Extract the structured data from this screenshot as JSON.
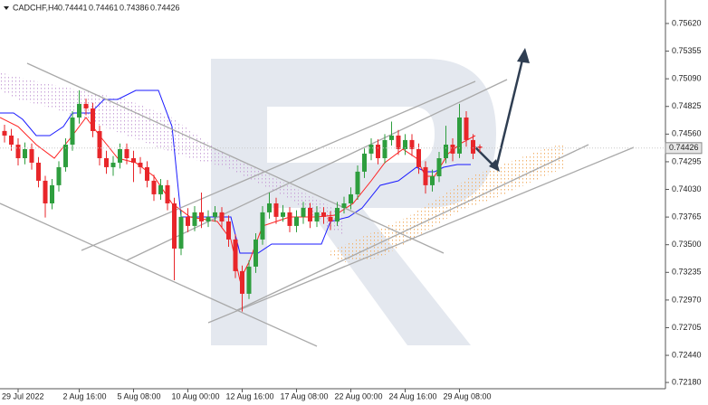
{
  "chart_data": {
    "type": "candlestick",
    "title": "CADCHF,H4",
    "categories": [
      null,
      null,
      "29 Jul 2022",
      null,
      null,
      null,
      null,
      null,
      null,
      null,
      null,
      "2 Aug 16:00",
      null,
      null,
      null,
      null,
      null,
      null,
      null,
      "5 Aug 08:00",
      null,
      null,
      null,
      null,
      null,
      null,
      null,
      "10 Aug 00:00",
      null,
      null,
      null,
      null,
      null,
      null,
      null,
      "12 Aug 16:00",
      null,
      null,
      null,
      null,
      null,
      null,
      null,
      "17 Aug 08:00",
      null,
      null,
      null,
      null,
      null,
      null,
      null,
      "22 Aug 00:00",
      null,
      null,
      null,
      null,
      null,
      null,
      null,
      "24 Aug 16:00",
      null,
      null,
      null,
      null,
      null,
      null,
      null,
      "29 Aug 08:00",
      null,
      null,
      null
    ],
    "open": [
      0.7459,
      0.74546,
      0.74459,
      0.74329,
      0.74416,
      0.74286,
      0.74113,
      0.73896,
      0.7407,
      0.74243,
      0.74459,
      0.74719,
      0.74849,
      0.74806,
      0.74589,
      0.74329,
      0.74243,
      0.74286,
      0.74416,
      0.74329,
      0.74286,
      0.74243,
      0.74113,
      0.73983,
      0.7407,
      0.73896,
      0.73463,
      0.73767,
      0.7368,
      0.7381,
      0.73723,
      0.73767,
      0.7381,
      0.73723,
      0.7355,
      0.73247,
      0.7303,
      0.7329,
      0.7355,
      0.7381,
      0.73896,
      0.73767,
      0.7381,
      0.7368,
      0.73767,
      0.73853,
      0.73723,
      0.7381,
      0.73767,
      0.73723,
      0.73853,
      0.73896,
      0.73983,
      0.742,
      0.74373,
      0.74459,
      0.74329,
      0.74503,
      0.74546,
      0.74416,
      0.74503,
      0.74416,
      0.74243,
      0.7407,
      0.74156,
      0.74329,
      0.74459,
      0.74373,
      0.74719,
      0.74503,
      0.74441
    ],
    "high": [
      0.7465,
      0.7461,
      0.7452,
      0.7448,
      0.7447,
      0.7434,
      0.7416,
      0.7413,
      0.743,
      0.7452,
      0.7478,
      0.7498,
      0.749,
      0.7486,
      0.7464,
      0.744,
      0.7435,
      0.7447,
      0.7447,
      0.744,
      0.7434,
      0.743,
      0.7417,
      0.7413,
      0.7412,
      0.7395,
      0.7383,
      0.7385,
      0.7387,
      0.74,
      0.7383,
      0.7387,
      0.7386,
      0.7378,
      0.736,
      0.733,
      0.7335,
      0.7361,
      0.7387,
      0.74,
      0.7395,
      0.7388,
      0.7386,
      0.7383,
      0.7391,
      0.739,
      0.7387,
      0.7386,
      0.7382,
      0.7391,
      0.7396,
      0.7405,
      0.7426,
      0.7443,
      0.7452,
      0.7451,
      0.7456,
      0.7468,
      0.746,
      0.7456,
      0.7456,
      0.7447,
      0.743,
      0.7422,
      0.7439,
      0.7464,
      0.7452,
      0.7485,
      0.7478,
      0.7456,
      0.74461
    ],
    "low": [
      0.7448,
      0.744,
      0.7426,
      0.7427,
      0.7422,
      0.7405,
      0.7376,
      0.7384,
      0.7401,
      0.742,
      0.744,
      0.7466,
      0.7474,
      0.7453,
      0.7426,
      0.7418,
      0.7416,
      0.7423,
      0.7427,
      0.741,
      0.7418,
      0.7405,
      0.7392,
      0.7393,
      0.7383,
      0.7316,
      0.734,
      0.7362,
      0.7363,
      0.7366,
      0.7367,
      0.7372,
      0.7366,
      0.7348,
      0.7318,
      0.7286,
      0.7298,
      0.7323,
      0.735,
      0.7375,
      0.737,
      0.7372,
      0.7362,
      0.7362,
      0.737,
      0.7366,
      0.7367,
      0.737,
      0.7364,
      0.7368,
      0.738,
      0.7384,
      0.7393,
      0.7414,
      0.7431,
      0.7427,
      0.7428,
      0.7445,
      0.7436,
      0.7436,
      0.7435,
      0.7418,
      0.7399,
      0.7401,
      0.741,
      0.7428,
      0.743,
      0.7433,
      0.7444,
      0.7432,
      0.74386
    ],
    "close": [
      0.74546,
      0.74459,
      0.74329,
      0.74416,
      0.74286,
      0.74113,
      0.73896,
      0.7407,
      0.74243,
      0.74459,
      0.74719,
      0.74849,
      0.74806,
      0.74589,
      0.74329,
      0.74243,
      0.74286,
      0.74416,
      0.74329,
      0.74286,
      0.74243,
      0.74113,
      0.73983,
      0.7407,
      0.73896,
      0.73463,
      0.73767,
      0.7368,
      0.7381,
      0.73723,
      0.73767,
      0.7381,
      0.73723,
      0.7355,
      0.73247,
      0.7303,
      0.7329,
      0.7355,
      0.7381,
      0.73896,
      0.73767,
      0.7381,
      0.7368,
      0.73767,
      0.73853,
      0.73723,
      0.7381,
      0.73767,
      0.73723,
      0.73853,
      0.73896,
      0.73983,
      0.742,
      0.74373,
      0.74459,
      0.74329,
      0.74503,
      0.74546,
      0.74416,
      0.74503,
      0.74416,
      0.74243,
      0.7407,
      0.74156,
      0.74329,
      0.74459,
      0.74373,
      0.74719,
      0.74503,
      0.74373,
      0.74426
    ],
    "up_color": "#2e9e3e",
    "down_color": "#e8262a",
    "ylim": [
      0.7212,
      0.75845
    ],
    "yticks": [
      {
        "value": 0.7562,
        "label": "0.75620"
      },
      {
        "value": 0.75355,
        "label": "0.75355"
      },
      {
        "value": 0.7509,
        "label": "0.75090"
      },
      {
        "value": 0.74825,
        "label": "0.74825"
      },
      {
        "value": 0.7456,
        "label": "0.74560"
      },
      {
        "value": 0.74295,
        "label": "0.74295"
      },
      {
        "value": 0.7403,
        "label": "0.74030"
      },
      {
        "value": 0.73765,
        "label": "0.73765"
      },
      {
        "value": 0.735,
        "label": "0.73500"
      },
      {
        "value": 0.73235,
        "label": "0.73235"
      },
      {
        "value": 0.7297,
        "label": "0.72970"
      },
      {
        "value": 0.72705,
        "label": "0.72705"
      },
      {
        "value": 0.7244,
        "label": "0.72440"
      },
      {
        "value": 0.7218,
        "label": "0.72180"
      }
    ]
  }
}
